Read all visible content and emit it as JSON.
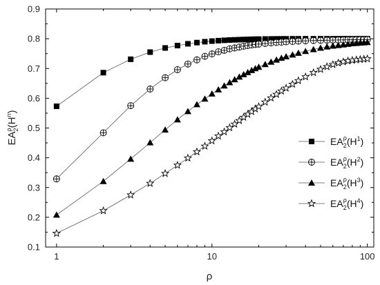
{
  "chart_data": {
    "type": "line",
    "xlabel": "ρ",
    "ylabel": "EA₂^ρ(H^n)",
    "ylabel_parts": {
      "base": "EA",
      "sub": "2",
      "sup": "ρ",
      "paren_base": "H",
      "paren_sup": "n"
    },
    "x_scale": "log",
    "xlim": [
      0.85,
      110
    ],
    "ylim": [
      0.1,
      0.9
    ],
    "x_ticks": [
      1,
      10,
      100
    ],
    "x_tick_labels": [
      "1",
      "10",
      "100"
    ],
    "y_ticks": [
      0.1,
      0.2,
      0.3,
      0.4,
      0.5,
      0.6,
      0.7,
      0.8,
      0.9
    ],
    "y_tick_labels": [
      "0.1",
      "0.2",
      "0.3",
      "0.4",
      "0.5",
      "0.6",
      "0.7",
      "0.8",
      "0.9"
    ],
    "grid": false,
    "legend_position": "right",
    "series": [
      {
        "name": "EA₂^ρ(H^1)",
        "label": {
          "base": "EA",
          "sub": "2",
          "sup": "ρ",
          "arg": "H",
          "arg_sup": "1"
        },
        "marker": "square",
        "color": "#000000",
        "x": [
          1,
          2,
          3,
          4,
          5,
          6,
          7,
          8,
          9,
          10,
          11,
          12,
          13,
          14,
          15,
          16,
          17,
          18,
          19,
          20,
          22,
          24,
          26,
          28,
          30,
          33,
          36,
          40,
          45,
          50,
          55,
          60,
          65,
          70,
          75,
          80,
          85,
          90,
          95,
          100
        ],
        "y": [
          0.573,
          0.686,
          0.731,
          0.755,
          0.769,
          0.777,
          0.783,
          0.787,
          0.79,
          0.792,
          0.7935,
          0.7947,
          0.7956,
          0.7963,
          0.7969,
          0.7974,
          0.7978,
          0.7982,
          0.7985,
          0.7988,
          0.7991,
          0.7993,
          0.7995,
          0.7996,
          0.7997,
          0.7998,
          0.7998,
          0.7999,
          0.7999,
          0.8,
          0.8,
          0.8,
          0.8,
          0.8,
          0.8,
          0.8,
          0.8,
          0.8,
          0.8,
          0.8
        ]
      },
      {
        "name": "EA₂^ρ(H^2)",
        "label": {
          "base": "EA",
          "sub": "2",
          "sup": "ρ",
          "arg": "H",
          "arg_sup": "2"
        },
        "marker": "circle-plus",
        "color": "#000000",
        "x": [
          1,
          2,
          3,
          4,
          5,
          6,
          7,
          8,
          9,
          10,
          11,
          12,
          13,
          14,
          15,
          16,
          17,
          18,
          19,
          20,
          22,
          24,
          26,
          28,
          30,
          33,
          36,
          40,
          45,
          50,
          55,
          60,
          65,
          70,
          75,
          80,
          85,
          90,
          95,
          100
        ],
        "y": [
          0.329,
          0.484,
          0.575,
          0.631,
          0.669,
          0.696,
          0.715,
          0.729,
          0.741,
          0.749,
          0.756,
          0.761,
          0.766,
          0.769,
          0.772,
          0.775,
          0.777,
          0.779,
          0.7805,
          0.782,
          0.784,
          0.786,
          0.7875,
          0.7885,
          0.7895,
          0.7908,
          0.7918,
          0.7928,
          0.7938,
          0.7945,
          0.795,
          0.7955,
          0.7958,
          0.7961,
          0.7964,
          0.7966,
          0.7968,
          0.797,
          0.7971,
          0.7972
        ]
      },
      {
        "name": "EA₂^ρ(H^3)",
        "label": {
          "base": "EA",
          "sub": "2",
          "sup": "ρ",
          "arg": "H",
          "arg_sup": "3"
        },
        "marker": "triangle",
        "color": "#000000",
        "x": [
          1,
          2,
          3,
          4,
          5,
          6,
          7,
          8,
          9,
          10,
          11,
          12,
          13,
          14,
          15,
          16,
          17,
          18,
          19,
          20,
          22,
          24,
          26,
          28,
          30,
          33,
          36,
          40,
          45,
          50,
          55,
          60,
          65,
          70,
          75,
          80,
          85,
          90,
          95,
          100
        ],
        "y": [
          0.208,
          0.321,
          0.396,
          0.451,
          0.494,
          0.528,
          0.556,
          0.579,
          0.598,
          0.615,
          0.629,
          0.642,
          0.653,
          0.663,
          0.672,
          0.68,
          0.687,
          0.694,
          0.7,
          0.705,
          0.714,
          0.722,
          0.729,
          0.735,
          0.74,
          0.746,
          0.752,
          0.758,
          0.764,
          0.769,
          0.773,
          0.776,
          0.778,
          0.78,
          0.782,
          0.784,
          0.785,
          0.786,
          0.787,
          0.788
        ]
      },
      {
        "name": "EA₂^ρ(H^4)",
        "label": {
          "base": "EA",
          "sub": "2",
          "sup": "ρ",
          "arg": "H",
          "arg_sup": "4"
        },
        "marker": "star",
        "color": "#000000",
        "x": [
          1,
          2,
          3,
          4,
          5,
          6,
          7,
          8,
          9,
          10,
          11,
          12,
          13,
          14,
          15,
          16,
          17,
          18,
          19,
          20,
          22,
          24,
          26,
          28,
          30,
          33,
          36,
          40,
          45,
          50,
          55,
          60,
          65,
          70,
          75,
          80,
          85,
          90,
          95,
          100
        ],
        "y": [
          0.146,
          0.222,
          0.275,
          0.314,
          0.347,
          0.375,
          0.399,
          0.42,
          0.439,
          0.457,
          0.473,
          0.487,
          0.501,
          0.513,
          0.525,
          0.536,
          0.546,
          0.555,
          0.564,
          0.572,
          0.587,
          0.601,
          0.613,
          0.624,
          0.634,
          0.647,
          0.659,
          0.672,
          0.686,
          0.697,
          0.706,
          0.713,
          0.7185,
          0.7225,
          0.7255,
          0.7275,
          0.729,
          0.7305,
          0.7315,
          0.7325
        ]
      }
    ]
  }
}
